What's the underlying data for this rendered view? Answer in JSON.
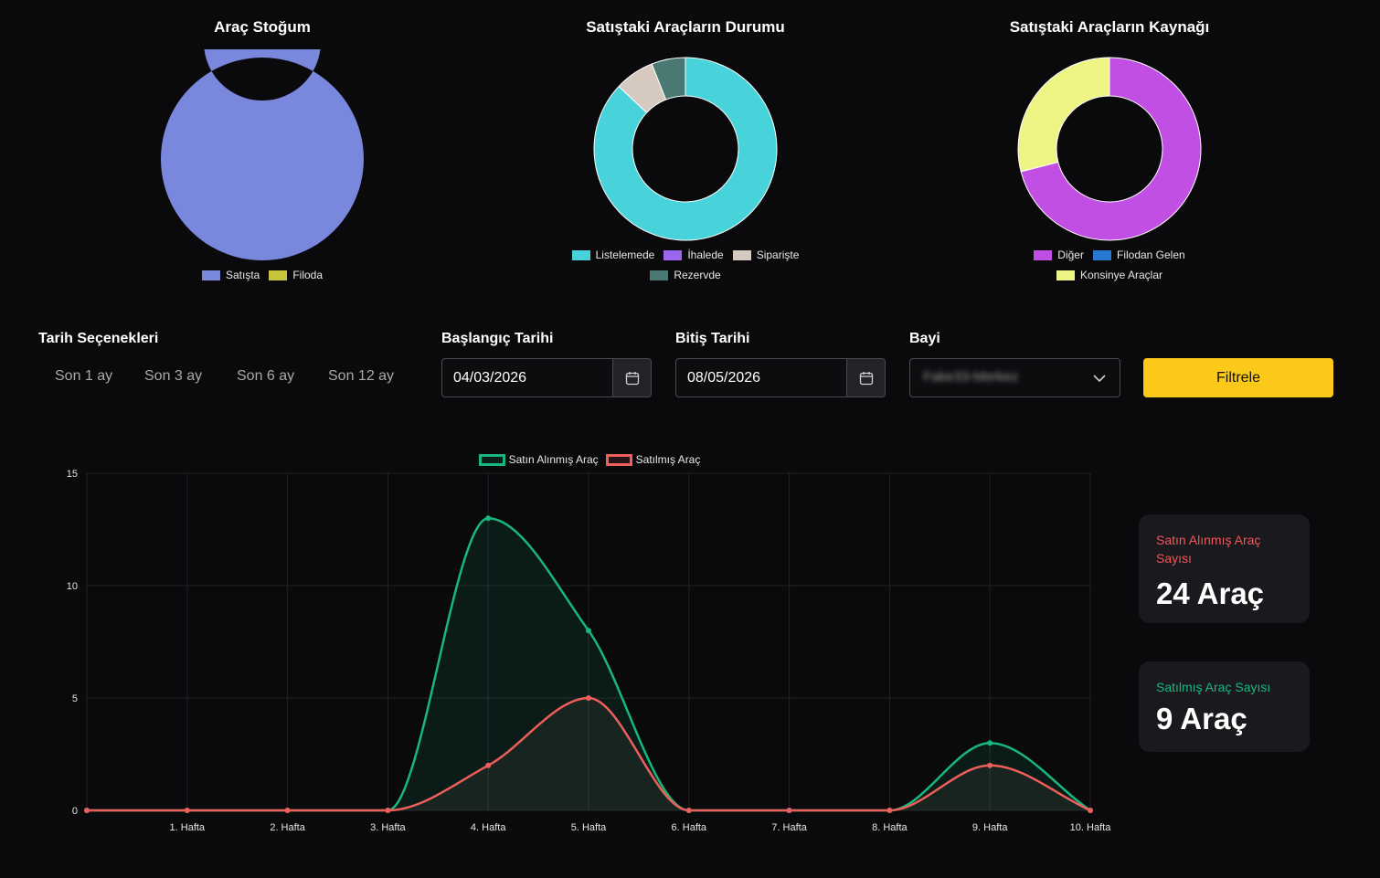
{
  "donuts": [
    {
      "title": "Araç Stoğum",
      "legend": [
        {
          "label": "Satışta",
          "color": "#7987dc"
        },
        {
          "label": "Filoda",
          "color": "#c5c43a"
        }
      ]
    },
    {
      "title": "Satıştaki Araçların Durumu",
      "legend": [
        {
          "label": "Listelemede",
          "color": "#48d3db"
        },
        {
          "label": "İhalede",
          "color": "#9b67f1"
        },
        {
          "label": "Siparişte",
          "color": "#d6c9bf"
        },
        {
          "label": "Rezervde",
          "color": "#4a7873"
        }
      ]
    },
    {
      "title": "Satıştaki Araçların Kaynağı",
      "legend": [
        {
          "label": "Diğer",
          "color": "#c24fe4"
        },
        {
          "label": "Filodan Gelen",
          "color": "#2979d2"
        },
        {
          "label": "Konsinye Araçlar",
          "color": "#eef584"
        }
      ]
    }
  ],
  "filters": {
    "date_options_label": "Tarih Seçenekleri",
    "ranges": [
      "Son 1 ay",
      "Son 3 ay",
      "Son 6 ay",
      "Son 12 ay"
    ],
    "start_label": "Başlangıç Tarihi",
    "start_value": "04/03/2026",
    "end_label": "Bitiş Tarihi",
    "end_value": "08/05/2026",
    "dealer_label": "Bayi",
    "dealer_value": "Fake33-Merkez",
    "filter_button": "Filtrele"
  },
  "stats": {
    "purchased_label": "Satın Alınmış Araç Sayısı",
    "purchased_value": "24 Araç",
    "purchased_color": "#f0575a",
    "sold_label": "Satılmış Araç Sayısı",
    "sold_value": "9 Araç",
    "sold_color": "#19b67d"
  },
  "chart_data": [
    {
      "type": "pie",
      "title": "Araç Stoğum",
      "labels": [
        "Satışta",
        "Filoda"
      ],
      "values": [
        100,
        0
      ],
      "colors": [
        "#7987dc",
        "#c5c43a"
      ],
      "legend": "bottom"
    },
    {
      "type": "pie",
      "title": "Satıştaki Araçların Durumu",
      "labels": [
        "Listelemede",
        "İhalede",
        "Siparişte",
        "Rezervde"
      ],
      "values": [
        87,
        0,
        7,
        6
      ],
      "colors": [
        "#48d3db",
        "#9b67f1",
        "#d6c9bf",
        "#4a7873"
      ],
      "legend": "bottom"
    },
    {
      "type": "pie",
      "title": "Satıştaki Araçların Kaynağı",
      "labels": [
        "Diğer",
        "Filodan Gelen",
        "Konsinye Araçlar"
      ],
      "values": [
        71,
        0,
        29
      ],
      "colors": [
        "#c24fe4",
        "#2979d2",
        "#eef584"
      ],
      "legend": "bottom"
    },
    {
      "type": "line",
      "title": "",
      "x": [
        "",
        "1. Hafta",
        "2. Hafta",
        "3. Hafta",
        "4. Hafta",
        "5. Hafta",
        "6. Hafta",
        "7. Hafta",
        "8. Hafta",
        "9. Hafta",
        "10. Hafta"
      ],
      "series": [
        {
          "name": "Satın Alınmış Araç",
          "values": [
            0,
            0,
            0,
            0,
            13,
            8,
            0,
            0,
            0,
            3,
            0
          ],
          "color": "#19b67d"
        },
        {
          "name": "Satılmış Araç",
          "values": [
            0,
            0,
            0,
            0,
            2,
            5,
            0,
            0,
            0,
            2,
            0
          ],
          "color": "#ee5f5b"
        }
      ],
      "ylim": [
        0,
        15
      ],
      "yticks": [
        0,
        5,
        10,
        15
      ],
      "grid": true,
      "legend": "top"
    }
  ]
}
